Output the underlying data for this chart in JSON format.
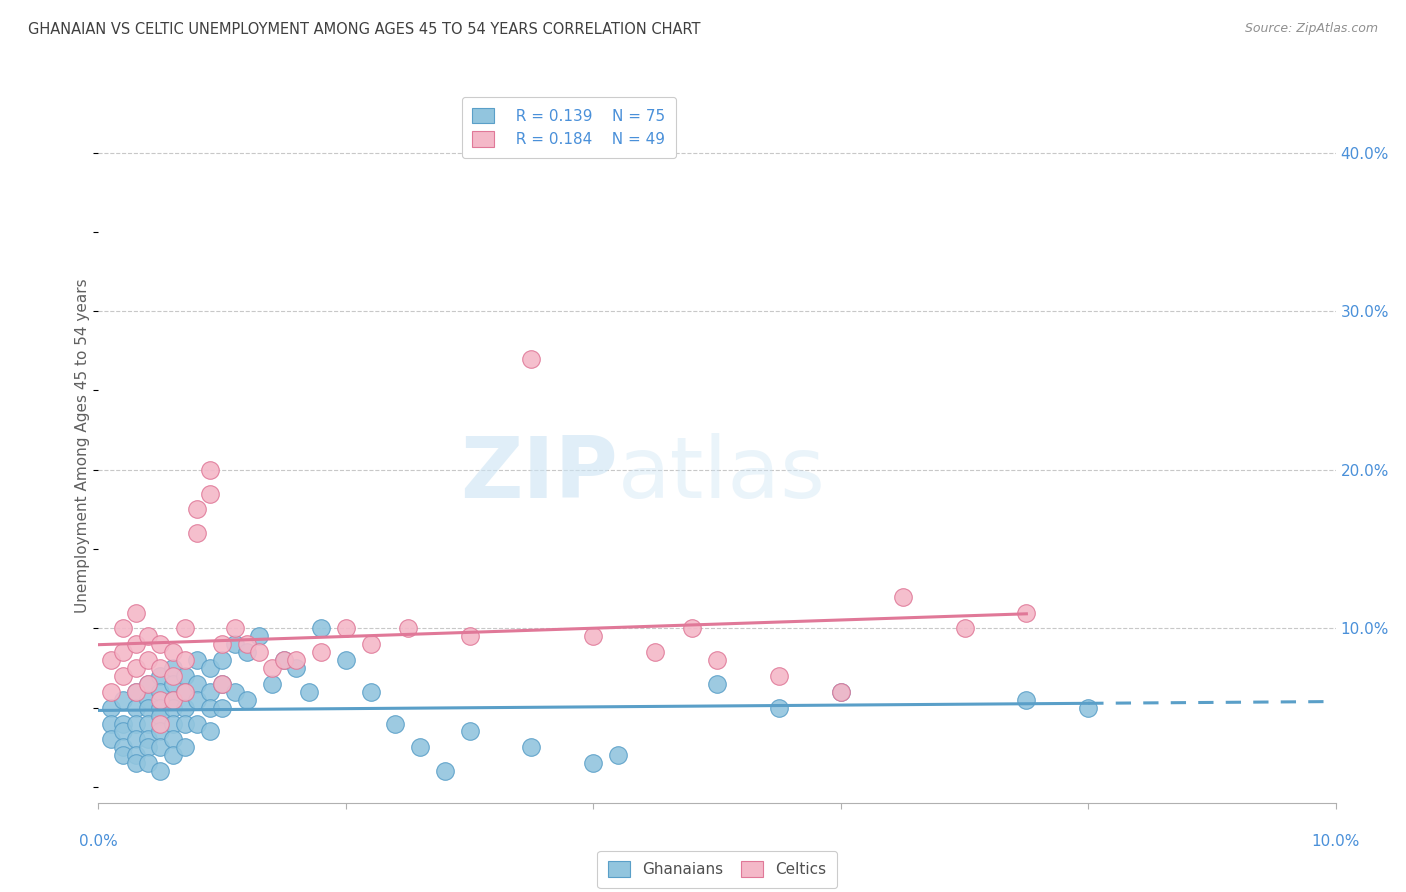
{
  "title": "GHANAIAN VS CELTIC UNEMPLOYMENT AMONG AGES 45 TO 54 YEARS CORRELATION CHART",
  "source": "Source: ZipAtlas.com",
  "ylabel": "Unemployment Among Ages 45 to 54 years",
  "xlim": [
    0.0,
    0.1
  ],
  "ylim": [
    -0.01,
    0.44
  ],
  "yticks": [
    0.0,
    0.1,
    0.2,
    0.3,
    0.4
  ],
  "ytick_labels": [
    "",
    "10.0%",
    "20.0%",
    "30.0%",
    "40.0%"
  ],
  "xticks": [
    0.0,
    0.02,
    0.04,
    0.06,
    0.08,
    0.1
  ],
  "background_color": "#ffffff",
  "grid_color": "#c8c8c8",
  "blue_color": "#92c5de",
  "pink_color": "#f4b8c8",
  "blue_edge_color": "#5a9fc8",
  "pink_edge_color": "#e07898",
  "blue_line_color": "#5a9fc8",
  "pink_line_color": "#e07898",
  "title_color": "#404040",
  "axis_label_color": "#4a90d9",
  "legend_r1": "R = 0.139",
  "legend_n1": "N = 75",
  "legend_r2": "R = 0.184",
  "legend_n2": "N = 49",
  "watermark_zip": "ZIP",
  "watermark_atlas": "atlas",
  "ghanaian_x": [
    0.001,
    0.001,
    0.001,
    0.002,
    0.002,
    0.002,
    0.002,
    0.002,
    0.003,
    0.003,
    0.003,
    0.003,
    0.003,
    0.003,
    0.004,
    0.004,
    0.004,
    0.004,
    0.004,
    0.004,
    0.004,
    0.005,
    0.005,
    0.005,
    0.005,
    0.005,
    0.005,
    0.005,
    0.006,
    0.006,
    0.006,
    0.006,
    0.006,
    0.006,
    0.006,
    0.007,
    0.007,
    0.007,
    0.007,
    0.007,
    0.008,
    0.008,
    0.008,
    0.008,
    0.009,
    0.009,
    0.009,
    0.009,
    0.01,
    0.01,
    0.01,
    0.011,
    0.011,
    0.012,
    0.012,
    0.013,
    0.014,
    0.015,
    0.016,
    0.017,
    0.018,
    0.02,
    0.022,
    0.024,
    0.026,
    0.028,
    0.03,
    0.035,
    0.04,
    0.042,
    0.05,
    0.055,
    0.06,
    0.075,
    0.08
  ],
  "ghanaian_y": [
    0.05,
    0.04,
    0.03,
    0.055,
    0.04,
    0.035,
    0.025,
    0.02,
    0.06,
    0.05,
    0.04,
    0.03,
    0.02,
    0.015,
    0.065,
    0.055,
    0.05,
    0.04,
    0.03,
    0.025,
    0.015,
    0.07,
    0.06,
    0.05,
    0.045,
    0.035,
    0.025,
    0.01,
    0.075,
    0.065,
    0.055,
    0.05,
    0.04,
    0.03,
    0.02,
    0.07,
    0.06,
    0.05,
    0.04,
    0.025,
    0.08,
    0.065,
    0.055,
    0.04,
    0.075,
    0.06,
    0.05,
    0.035,
    0.08,
    0.065,
    0.05,
    0.09,
    0.06,
    0.085,
    0.055,
    0.095,
    0.065,
    0.08,
    0.075,
    0.06,
    0.1,
    0.08,
    0.06,
    0.04,
    0.025,
    0.01,
    0.035,
    0.025,
    0.015,
    0.02,
    0.065,
    0.05,
    0.06,
    0.055,
    0.05
  ],
  "celtic_x": [
    0.001,
    0.001,
    0.002,
    0.002,
    0.002,
    0.003,
    0.003,
    0.003,
    0.003,
    0.004,
    0.004,
    0.004,
    0.005,
    0.005,
    0.005,
    0.005,
    0.006,
    0.006,
    0.006,
    0.007,
    0.007,
    0.007,
    0.008,
    0.008,
    0.009,
    0.009,
    0.01,
    0.01,
    0.011,
    0.012,
    0.013,
    0.014,
    0.015,
    0.016,
    0.018,
    0.02,
    0.022,
    0.025,
    0.03,
    0.035,
    0.04,
    0.045,
    0.048,
    0.05,
    0.055,
    0.06,
    0.065,
    0.07,
    0.075
  ],
  "celtic_y": [
    0.08,
    0.06,
    0.1,
    0.085,
    0.07,
    0.11,
    0.09,
    0.075,
    0.06,
    0.095,
    0.08,
    0.065,
    0.09,
    0.075,
    0.055,
    0.04,
    0.085,
    0.07,
    0.055,
    0.1,
    0.08,
    0.06,
    0.175,
    0.16,
    0.185,
    0.2,
    0.09,
    0.065,
    0.1,
    0.09,
    0.085,
    0.075,
    0.08,
    0.08,
    0.085,
    0.1,
    0.09,
    0.1,
    0.095,
    0.27,
    0.095,
    0.085,
    0.1,
    0.08,
    0.07,
    0.06,
    0.12,
    0.1,
    0.11
  ]
}
